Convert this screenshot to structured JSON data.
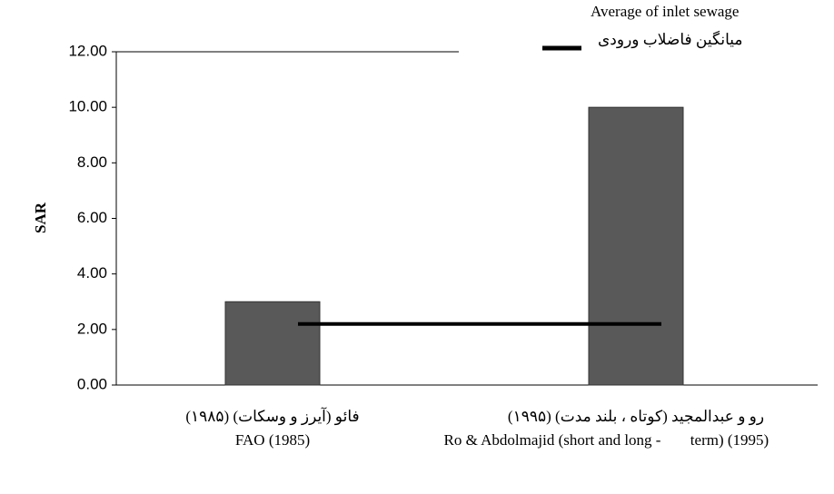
{
  "chart_data": {
    "type": "bar",
    "y_label": "SAR",
    "categories": [
      "فائو (آیرز و وسکات) (۱۹۸۵)\nFAO (1985)",
      "رو و عبدالمجید (کوتاه ، بلند مدت) (۱۹۹۵)\nRo & Abdolmajid (short and long -\nterm) (1995)"
    ],
    "values": [
      3,
      10
    ],
    "color": "#595959",
    "series": [
      {
        "name": "Average of inlet sewage\nمیانگین فاضلاب ورودی",
        "color": "#000000",
        "values": [
          2.2,
          2.2
        ]
      }
    ],
    "ylim": [
      0,
      12
    ],
    "yticks": [
      {
        "value": 0,
        "label": "0.00"
      },
      {
        "value": 2,
        "label": "2.00"
      },
      {
        "value": 4,
        "label": "4.00"
      },
      {
        "value": 6,
        "label": "6.00"
      },
      {
        "value": 8,
        "label": "8.00"
      },
      {
        "value": 10,
        "label": "10.00"
      },
      {
        "value": 12,
        "label": "12.00"
      }
    ],
    "legend": "top-right"
  }
}
